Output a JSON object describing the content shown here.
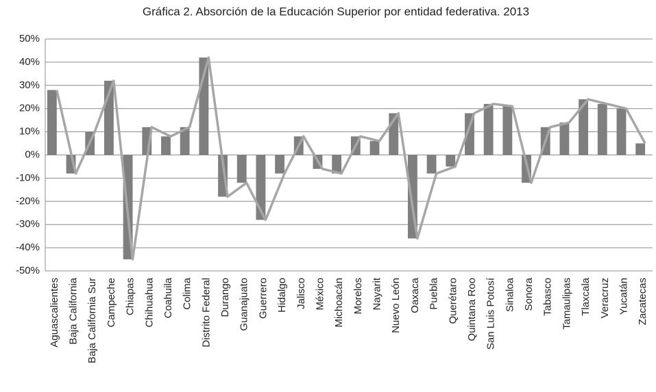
{
  "chart_data": {
    "type": "bar",
    "title": "Gráfica 2. Absorción de la Educación Superior por entidad federativa. 2013",
    "categories": [
      "Aguascalientes",
      "Baja California",
      "Baja California Sur",
      "Campeche",
      "Chiapas",
      "Chihuahua",
      "Coahuila",
      "Colima",
      "Distrito Federal",
      "Durango",
      "Guanajuato",
      "Guerrero",
      "Hidalgo",
      "Jalisco",
      "México",
      "Michoacán",
      "Morelos",
      "Nayarit",
      "Nuevo León",
      "Oaxaca",
      "Puebla",
      "Querétaro",
      "Quintana Roo",
      "San Luis Potosí",
      "Sinaloa",
      "Sonora",
      "Tabasco",
      "Tamaulipas",
      "Tlaxcala",
      "Veracruz",
      "Yucatán",
      "Zacatecas"
    ],
    "values": [
      28,
      -8,
      10,
      32,
      -45,
      12,
      8,
      12,
      42,
      -18,
      -12,
      -28,
      -8,
      8,
      -6,
      -8,
      8,
      6,
      18,
      -36,
      -8,
      -5,
      18,
      22,
      21,
      -12,
      12,
      14,
      24,
      22,
      20,
      5
    ],
    "color": "#7f7f7f",
    "line": true,
    "line_color": "#a6a6a6",
    "ylim": [
      -50,
      50
    ],
    "yticks": [
      {
        "value": -50,
        "label": "-50%"
      },
      {
        "value": -40,
        "label": "-40%"
      },
      {
        "value": -30,
        "label": "-30%"
      },
      {
        "value": -20,
        "label": "-20%"
      },
      {
        "value": -10,
        "label": "-10%"
      },
      {
        "value": 0,
        "label": "0%"
      },
      {
        "value": 10,
        "label": "10%"
      },
      {
        "value": 20,
        "label": "20%"
      },
      {
        "value": 30,
        "label": "30%"
      },
      {
        "value": 40,
        "label": "40%"
      },
      {
        "value": 50,
        "label": "50%"
      }
    ],
    "grid": true
  }
}
